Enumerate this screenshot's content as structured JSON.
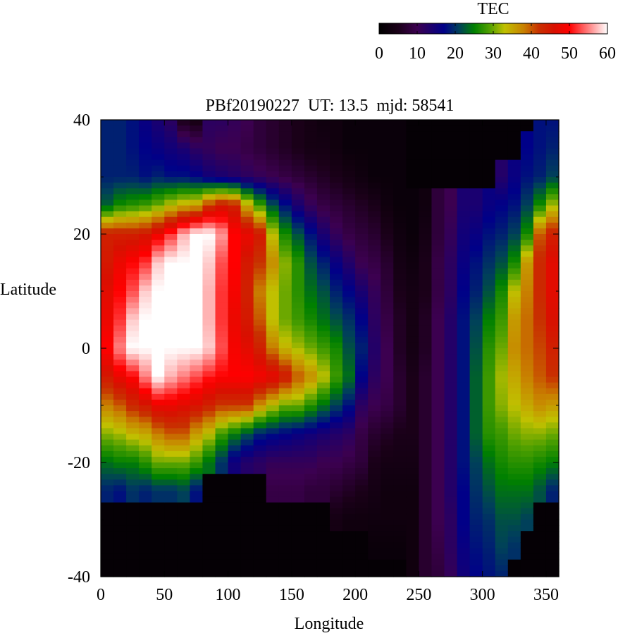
{
  "chart_data": {
    "type": "heatmap",
    "title": "PBf20190227  UT: 13.5  mjd: 58541",
    "xlabel": "Longitude",
    "ylabel": "Latitude",
    "xlim": [
      0,
      360
    ],
    "ylim": [
      -40,
      40
    ],
    "xticks": [
      "0",
      "50",
      "100",
      "150",
      "200",
      "250",
      "300",
      "350"
    ],
    "yticks": [
      "40",
      "20",
      "0",
      "-20",
      "-40"
    ],
    "grid": false,
    "colorbar": {
      "label": "TEC",
      "range": [
        0,
        60
      ],
      "ticks": [
        "0",
        "10",
        "20",
        "30",
        "40",
        "50",
        "60"
      ],
      "placement": "top-right",
      "colormap": [
        [
          0,
          "#000000"
        ],
        [
          5,
          "#1a0018"
        ],
        [
          10,
          "#3c0050"
        ],
        [
          14,
          "#1a0070"
        ],
        [
          17,
          "#000088"
        ],
        [
          21,
          "#00405a"
        ],
        [
          25,
          "#008000"
        ],
        [
          29,
          "#50a000"
        ],
        [
          33,
          "#c0c000"
        ],
        [
          38,
          "#c88000"
        ],
        [
          42,
          "#c83000"
        ],
        [
          46,
          "#d81000"
        ],
        [
          50,
          "#ff0000"
        ],
        [
          60,
          "#ffffff"
        ]
      ]
    },
    "x": [
      5,
      15,
      25,
      35,
      45,
      55,
      65,
      75,
      85,
      95,
      105,
      115,
      125,
      135,
      145,
      155,
      165,
      175,
      185,
      195,
      205,
      215,
      225,
      235,
      245,
      255,
      265,
      275,
      285,
      295,
      305,
      315,
      325,
      335,
      345,
      355
    ],
    "y": [
      40,
      35,
      30,
      25,
      20,
      15,
      10,
      5,
      0,
      -5,
      -10,
      -15,
      -20,
      -25,
      -30,
      -35,
      -40
    ],
    "z": [
      [
        19,
        19,
        19,
        23,
        44,
        45,
        47,
        48,
        50,
        45,
        38,
        31,
        24,
        19,
        1,
        1,
        1
      ],
      [
        19,
        19,
        19,
        26,
        44,
        48,
        50,
        52,
        55,
        48,
        40,
        32,
        25,
        18,
        1,
        1,
        1
      ],
      [
        18,
        18,
        19,
        27,
        44,
        50,
        53,
        58,
        60,
        50,
        43,
        34,
        25,
        20,
        1,
        1,
        1
      ],
      [
        16,
        17,
        18,
        28,
        45,
        52,
        58,
        60,
        60,
        55,
        45,
        35,
        27,
        19,
        1,
        1,
        1
      ],
      [
        14,
        16,
        19,
        30,
        48,
        58,
        60,
        60,
        60,
        60,
        48,
        38,
        30,
        20,
        1,
        1,
        1
      ],
      [
        12,
        15,
        18,
        33,
        52,
        60,
        60,
        60,
        60,
        57,
        48,
        40,
        30,
        20,
        1,
        1,
        1
      ],
      [
        5,
        14,
        18,
        35,
        57,
        60,
        60,
        60,
        60,
        55,
        47,
        40,
        30,
        21,
        1,
        1,
        1
      ],
      [
        4,
        12,
        17,
        36,
        60,
        60,
        60,
        60,
        60,
        53,
        46,
        36,
        28,
        18,
        1,
        1,
        1
      ],
      [
        12,
        11,
        15,
        42,
        60,
        58,
        57,
        57,
        58,
        51,
        44,
        33,
        24,
        1,
        1,
        1,
        1
      ],
      [
        12,
        10,
        14,
        45,
        56,
        53,
        52,
        52,
        53,
        50,
        42,
        28,
        20,
        1,
        1,
        1,
        1
      ],
      [
        11,
        10,
        13,
        44,
        50,
        50,
        49,
        48,
        49,
        50,
        42,
        25,
        15,
        1,
        1,
        1,
        1
      ],
      [
        10,
        9,
        12,
        35,
        48,
        45,
        44,
        45,
        47,
        50,
        42,
        22,
        13,
        1,
        1,
        1,
        1
      ],
      [
        8,
        8,
        11,
        28,
        45,
        42,
        38,
        40,
        44,
        49,
        37,
        19,
        12,
        1,
        1,
        1,
        1
      ],
      [
        7,
        7,
        10,
        22,
        33,
        37,
        33,
        33,
        38,
        48,
        33,
        18,
        11,
        9,
        1,
        1,
        1
      ],
      [
        6,
        6,
        9,
        18,
        26,
        31,
        30,
        30,
        34,
        45,
        30,
        17,
        11,
        9,
        1,
        1,
        1
      ],
      [
        5,
        5,
        8,
        14,
        22,
        27,
        27,
        28,
        32,
        40,
        30,
        16,
        11,
        9,
        1,
        1,
        1
      ],
      [
        4,
        4,
        7,
        11,
        18,
        22,
        24,
        26,
        30,
        37,
        27,
        15,
        11,
        8,
        1,
        1,
        1
      ],
      [
        3,
        4,
        6,
        9,
        14,
        19,
        22,
        24,
        28,
        33,
        24,
        14,
        10,
        8,
        1,
        1,
        1
      ],
      [
        3,
        3,
        5,
        8,
        11,
        16,
        19,
        22,
        26,
        28,
        21,
        13,
        10,
        7,
        4,
        1,
        1
      ],
      [
        2,
        2,
        4,
        7,
        9,
        13,
        17,
        20,
        22,
        24,
        18,
        12,
        9,
        6,
        3,
        1,
        1
      ],
      [
        2,
        2,
        3,
        6,
        8,
        10,
        14,
        17,
        19,
        17,
        12,
        9,
        8,
        5,
        3,
        1,
        1
      ],
      [
        2,
        2,
        2,
        5,
        7,
        9,
        11,
        12,
        13,
        12,
        10,
        7,
        5,
        4,
        3,
        2,
        1
      ],
      [
        2,
        2,
        2,
        3,
        5,
        7,
        8,
        9,
        10,
        10,
        9,
        6,
        4,
        3,
        3,
        2,
        1
      ],
      [
        2,
        2,
        2,
        2,
        3,
        4,
        5,
        6,
        6,
        7,
        7,
        5,
        4,
        3,
        3,
        2,
        1
      ],
      [
        1,
        1,
        1,
        2,
        2,
        3,
        4,
        4,
        4,
        5,
        5,
        5,
        4,
        3,
        3,
        3,
        3
      ],
      [
        1,
        1,
        1,
        3,
        4,
        5,
        5,
        6,
        6,
        7,
        7,
        7,
        7,
        7,
        7,
        7,
        7
      ],
      [
        1,
        1,
        1,
        8,
        8,
        9,
        9,
        10,
        10,
        10,
        10,
        10,
        10,
        10,
        10,
        9,
        8
      ],
      [
        1,
        1,
        1,
        10,
        11,
        12,
        12,
        13,
        13,
        13,
        13,
        13,
        13,
        13,
        12,
        12,
        11
      ],
      [
        1,
        1,
        1,
        14,
        15,
        16,
        17,
        18,
        18,
        18,
        18,
        18,
        18,
        17,
        17,
        16,
        15
      ],
      [
        1,
        1,
        1,
        14,
        16,
        18,
        19,
        21,
        22,
        23,
        23,
        23,
        21,
        20,
        19,
        18,
        17
      ],
      [
        1,
        1,
        1,
        16,
        18,
        20,
        22,
        25,
        27,
        28,
        28,
        27,
        24,
        22,
        20,
        19,
        18
      ],
      [
        1,
        1,
        13,
        17,
        19,
        22,
        26,
        28,
        30,
        32,
        31,
        28,
        26,
        24,
        22,
        21,
        19
      ],
      [
        1,
        1,
        16,
        18,
        21,
        26,
        33,
        36,
        37,
        35,
        33,
        30,
        27,
        24,
        22,
        20,
        1
      ],
      [
        1,
        17,
        18,
        21,
        26,
        36,
        38,
        39,
        39,
        38,
        35,
        31,
        27,
        24,
        21,
        1,
        1
      ],
      [
        18,
        18,
        19,
        26,
        40,
        43,
        43,
        42,
        41,
        40,
        37,
        31,
        26,
        22,
        1,
        1,
        1
      ],
      [
        18,
        19,
        21,
        32,
        44,
        47,
        47,
        46,
        44,
        42,
        36,
        30,
        25,
        19,
        1,
        1,
        1
      ]
    ]
  }
}
